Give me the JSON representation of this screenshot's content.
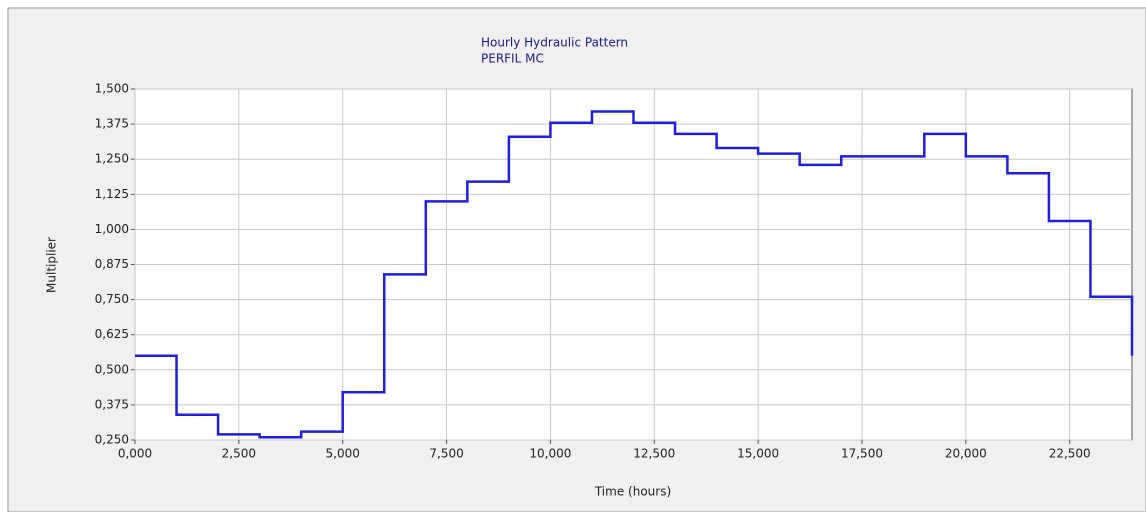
{
  "chart_data": {
    "type": "line",
    "step": true,
    "title": "Hourly Hydraulic Pattern",
    "subtitle": "PERFIL MC",
    "x_label": "Time (hours)",
    "y_label": "Multiplier",
    "x": [
      0,
      1,
      2,
      3,
      4,
      5,
      6,
      7,
      8,
      9,
      10,
      11,
      12,
      13,
      14,
      15,
      16,
      17,
      18,
      19,
      20,
      21,
      22,
      23,
      24
    ],
    "series": [
      {
        "color": "#1f1fe0",
        "values": [
          0.55,
          0.34,
          0.27,
          0.26,
          0.28,
          0.42,
          0.84,
          1.1,
          1.17,
          1.33,
          1.38,
          1.42,
          1.38,
          1.34,
          1.29,
          1.27,
          1.23,
          1.26,
          1.26,
          1.34,
          1.26,
          1.2,
          1.03,
          0.76,
          0.55
        ]
      }
    ],
    "xlim": [
      0,
      24
    ],
    "xticks": [
      {
        "value": 0,
        "label": "0,000"
      },
      {
        "value": 2.5,
        "label": "2,500"
      },
      {
        "value": 5,
        "label": "5,000"
      },
      {
        "value": 7.5,
        "label": "7,500"
      },
      {
        "value": 10,
        "label": "10,000"
      },
      {
        "value": 12.5,
        "label": "12,500"
      },
      {
        "value": 15,
        "label": "15,000"
      },
      {
        "value": 17.5,
        "label": "17,500"
      },
      {
        "value": 20,
        "label": "20,000"
      },
      {
        "value": 22.5,
        "label": "22,500"
      }
    ],
    "ylim": [
      0.25,
      1.5
    ],
    "yticks": [
      {
        "value": 0.25,
        "label": "0,250"
      },
      {
        "value": 0.375,
        "label": "0,375"
      },
      {
        "value": 0.5,
        "label": "0,500"
      },
      {
        "value": 0.625,
        "label": "0,625"
      },
      {
        "value": 0.75,
        "label": "0,750"
      },
      {
        "value": 0.875,
        "label": "0,875"
      },
      {
        "value": 1,
        "label": "1,000"
      },
      {
        "value": 1.125,
        "label": "1,125"
      },
      {
        "value": 1.25,
        "label": "1,250"
      },
      {
        "value": 1.375,
        "label": "1,375"
      },
      {
        "value": 1.5,
        "label": "1,500"
      }
    ],
    "grid": true
  }
}
